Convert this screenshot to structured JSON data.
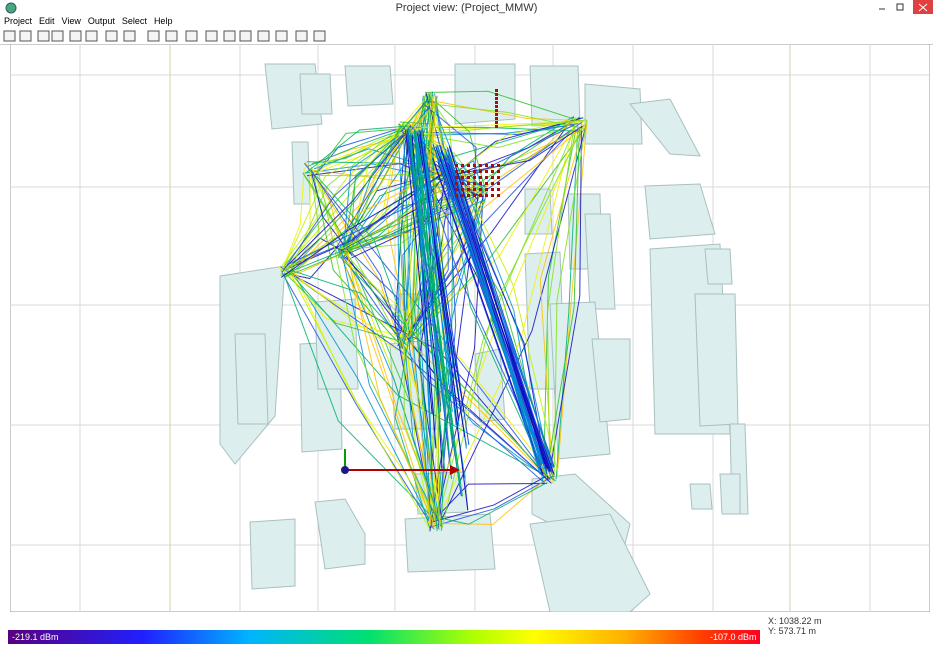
{
  "window": {
    "title": "Project view: (Project_MMW)"
  },
  "menu": [
    "Project",
    "Edit",
    "View",
    "Output",
    "Select",
    "Help"
  ],
  "colorbar": {
    "min_label": "-219.1 dBm",
    "max_label": "-107.0 dBm"
  },
  "status": {
    "x": "X: 1038.22 m",
    "y": "Y: 573.71 m"
  }
}
